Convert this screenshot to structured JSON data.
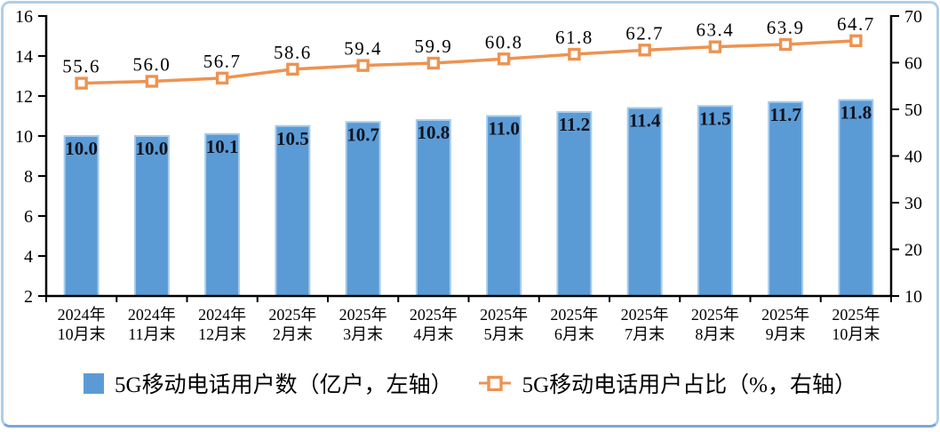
{
  "chart_data": {
    "type": "bar+line",
    "title": "",
    "grid": "off",
    "legend_position": "bottom",
    "categories": [
      "2024年10月末",
      "2024年11月末",
      "2024年12月末",
      "2025年2月末",
      "2025年3月末",
      "2025年4月末",
      "2025年5月末",
      "2025年6月末",
      "2025年7月末",
      "2025年8月末",
      "2025年9月末",
      "2025年10月末"
    ],
    "category_lines": [
      [
        "2024年",
        "10月末"
      ],
      [
        "2024年",
        "11月末"
      ],
      [
        "2024年",
        "12月末"
      ],
      [
        "2025年",
        "2月末"
      ],
      [
        "2025年",
        "3月末"
      ],
      [
        "2025年",
        "4月末"
      ],
      [
        "2025年",
        "5月末"
      ],
      [
        "2025年",
        "6月末"
      ],
      [
        "2025年",
        "7月末"
      ],
      [
        "2025年",
        "8月末"
      ],
      [
        "2025年",
        "9月末"
      ],
      [
        "2025年",
        "10月末"
      ]
    ],
    "series": [
      {
        "name": "5G移动电话用户数（亿户，左轴）",
        "type": "bar",
        "axis": "left",
        "values": [
          10.0,
          10.0,
          10.1,
          10.5,
          10.7,
          10.8,
          11.0,
          11.2,
          11.4,
          11.5,
          11.7,
          11.8
        ],
        "labels": [
          "10.0",
          "10.0",
          "10.1",
          "10.5",
          "10.7",
          "10.8",
          "11.0",
          "11.2",
          "11.4",
          "11.5",
          "11.7",
          "11.8"
        ],
        "color": "#5B9BD5",
        "border_color": "#A9CCEC"
      },
      {
        "name": "5G移动电话用户占比（%，右轴）",
        "type": "line",
        "axis": "right",
        "values": [
          55.6,
          56.0,
          56.7,
          58.6,
          59.4,
          59.9,
          60.8,
          61.8,
          62.7,
          63.4,
          63.9,
          64.7
        ],
        "labels": [
          "55.6",
          "56.0",
          "56.7",
          "58.6",
          "59.4",
          "59.9",
          "60.8",
          "61.8",
          "62.7",
          "63.4",
          "63.9",
          "64.7"
        ],
        "color": "#ED9351",
        "marker": "hollow-square"
      }
    ],
    "left_axis": {
      "min": 2,
      "max": 16,
      "step": 2,
      "ticks": [
        "2",
        "4",
        "6",
        "8",
        "10",
        "12",
        "14",
        "16"
      ]
    },
    "right_axis": {
      "min": 10,
      "max": 70,
      "step": 10,
      "ticks": [
        "10",
        "20",
        "30",
        "40",
        "50",
        "60",
        "70"
      ]
    }
  },
  "colors": {
    "axis": "#000000",
    "bar_label": "#10131f",
    "line_label": "#000000",
    "frame_border": "#AECDEC",
    "frame_bottom": "#7BA7D9",
    "background": "#FFFFFF"
  }
}
